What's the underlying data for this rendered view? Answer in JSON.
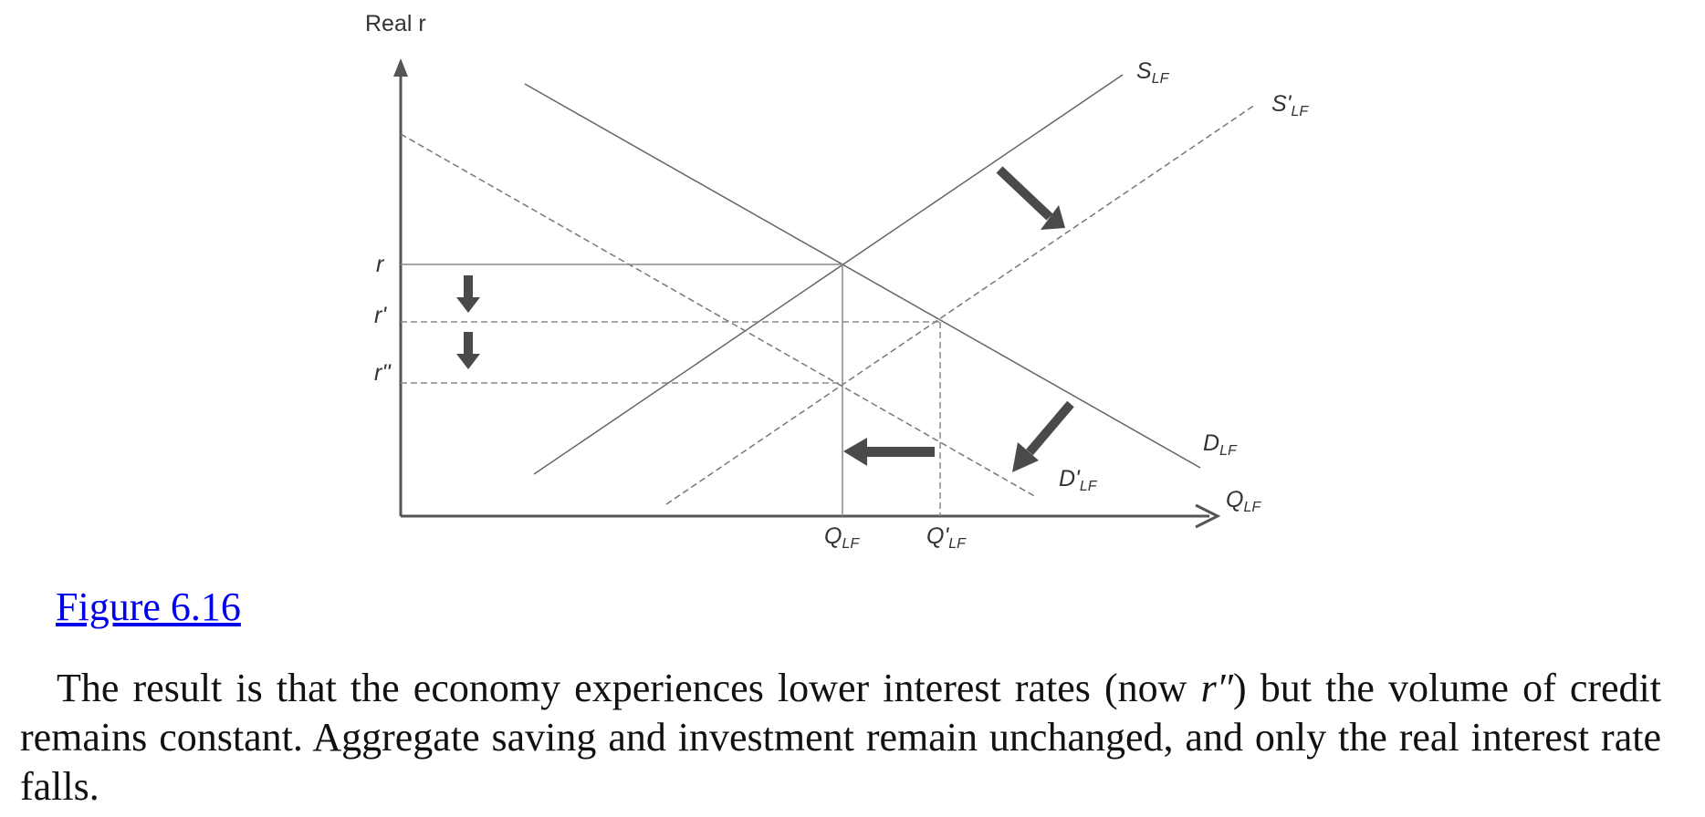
{
  "figure": {
    "y_axis_label": "Real r",
    "x_axis_label": "Q",
    "x_axis_label_sub": "LF",
    "r_labels": [
      "r",
      "r'",
      "r''"
    ],
    "q_labels": [
      {
        "main": "Q",
        "sub": "LF"
      },
      {
        "main": "Q'",
        "sub": "LF"
      }
    ],
    "curve_labels": {
      "s": {
        "main": "S",
        "sub": "LF"
      },
      "s_prime": {
        "main": "S'",
        "sub": "LF"
      },
      "d": {
        "main": "D",
        "sub": "LF"
      },
      "d_prime": {
        "main": "D'",
        "sub": "LF"
      }
    },
    "colors": {
      "lines": "#555555",
      "arrows": "#4a4a4a",
      "axes": "#555555"
    }
  },
  "caption": "Figure 6.16",
  "paragraph": {
    "part1": "The result is that the economy experiences lower interest rates (now ",
    "italic": "r″",
    "part2": ") but the volume of credit remains constant. Aggregate saving and investment remain unchanged, and only the real interest rate falls."
  }
}
